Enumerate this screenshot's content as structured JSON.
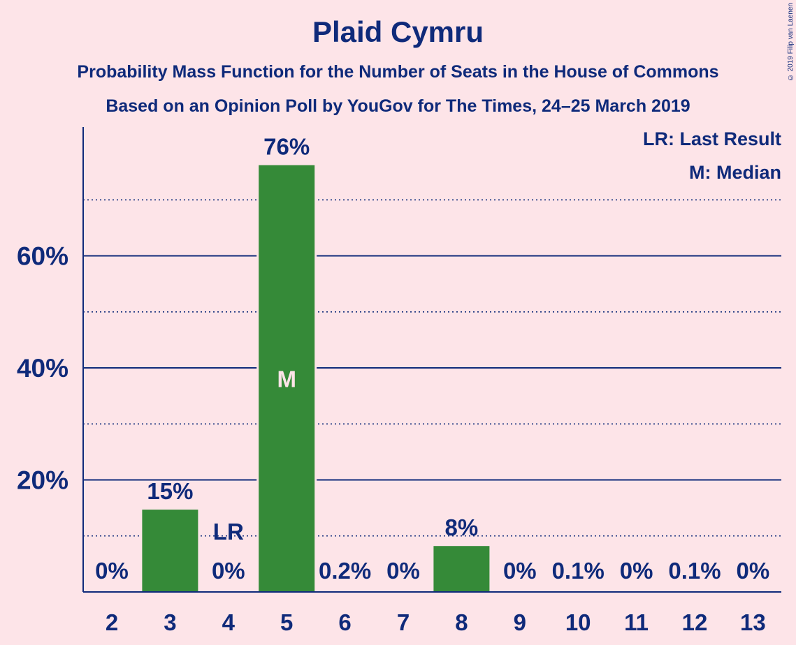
{
  "title": "Plaid Cymru",
  "subtitle1": "Probability Mass Function for the Number of Seats in the House of Commons",
  "subtitle2": "Based on an Opinion Poll by YouGov for The Times, 24–25 March 2019",
  "copyright": "© 2019 Filip van Laenen",
  "legend": {
    "last_result": "LR: Last Result",
    "median": "M: Median"
  },
  "colors": {
    "background": "#fde4e8",
    "bar": "#358a38",
    "text": "#0f2a7a"
  },
  "chart_data": {
    "type": "bar",
    "categories": [
      "2",
      "3",
      "4",
      "5",
      "6",
      "7",
      "8",
      "9",
      "10",
      "11",
      "12",
      "13"
    ],
    "values": [
      0,
      15,
      0,
      76,
      0.2,
      0,
      8,
      0,
      0.1,
      0,
      0.1,
      0
    ],
    "value_labels": [
      "0%",
      "15%",
      "0%",
      "76%",
      "0.2%",
      "0%",
      "8%",
      "0%",
      "0.1%",
      "0%",
      "0.1%",
      "0%"
    ],
    "bar_values": [
      0,
      14.7,
      0,
      76.2,
      0.2,
      0,
      8.2,
      0,
      0.1,
      0,
      0.1,
      0
    ],
    "ylim": [
      0,
      83
    ],
    "y_ticks": [
      20,
      40,
      60
    ],
    "y_tick_labels": [
      "20%",
      "40%",
      "60%"
    ],
    "minor_gridlines": [
      10,
      30,
      50,
      70
    ],
    "last_result": {
      "category": "4",
      "label": "LR"
    },
    "median": {
      "category": "5",
      "label": "M"
    }
  }
}
